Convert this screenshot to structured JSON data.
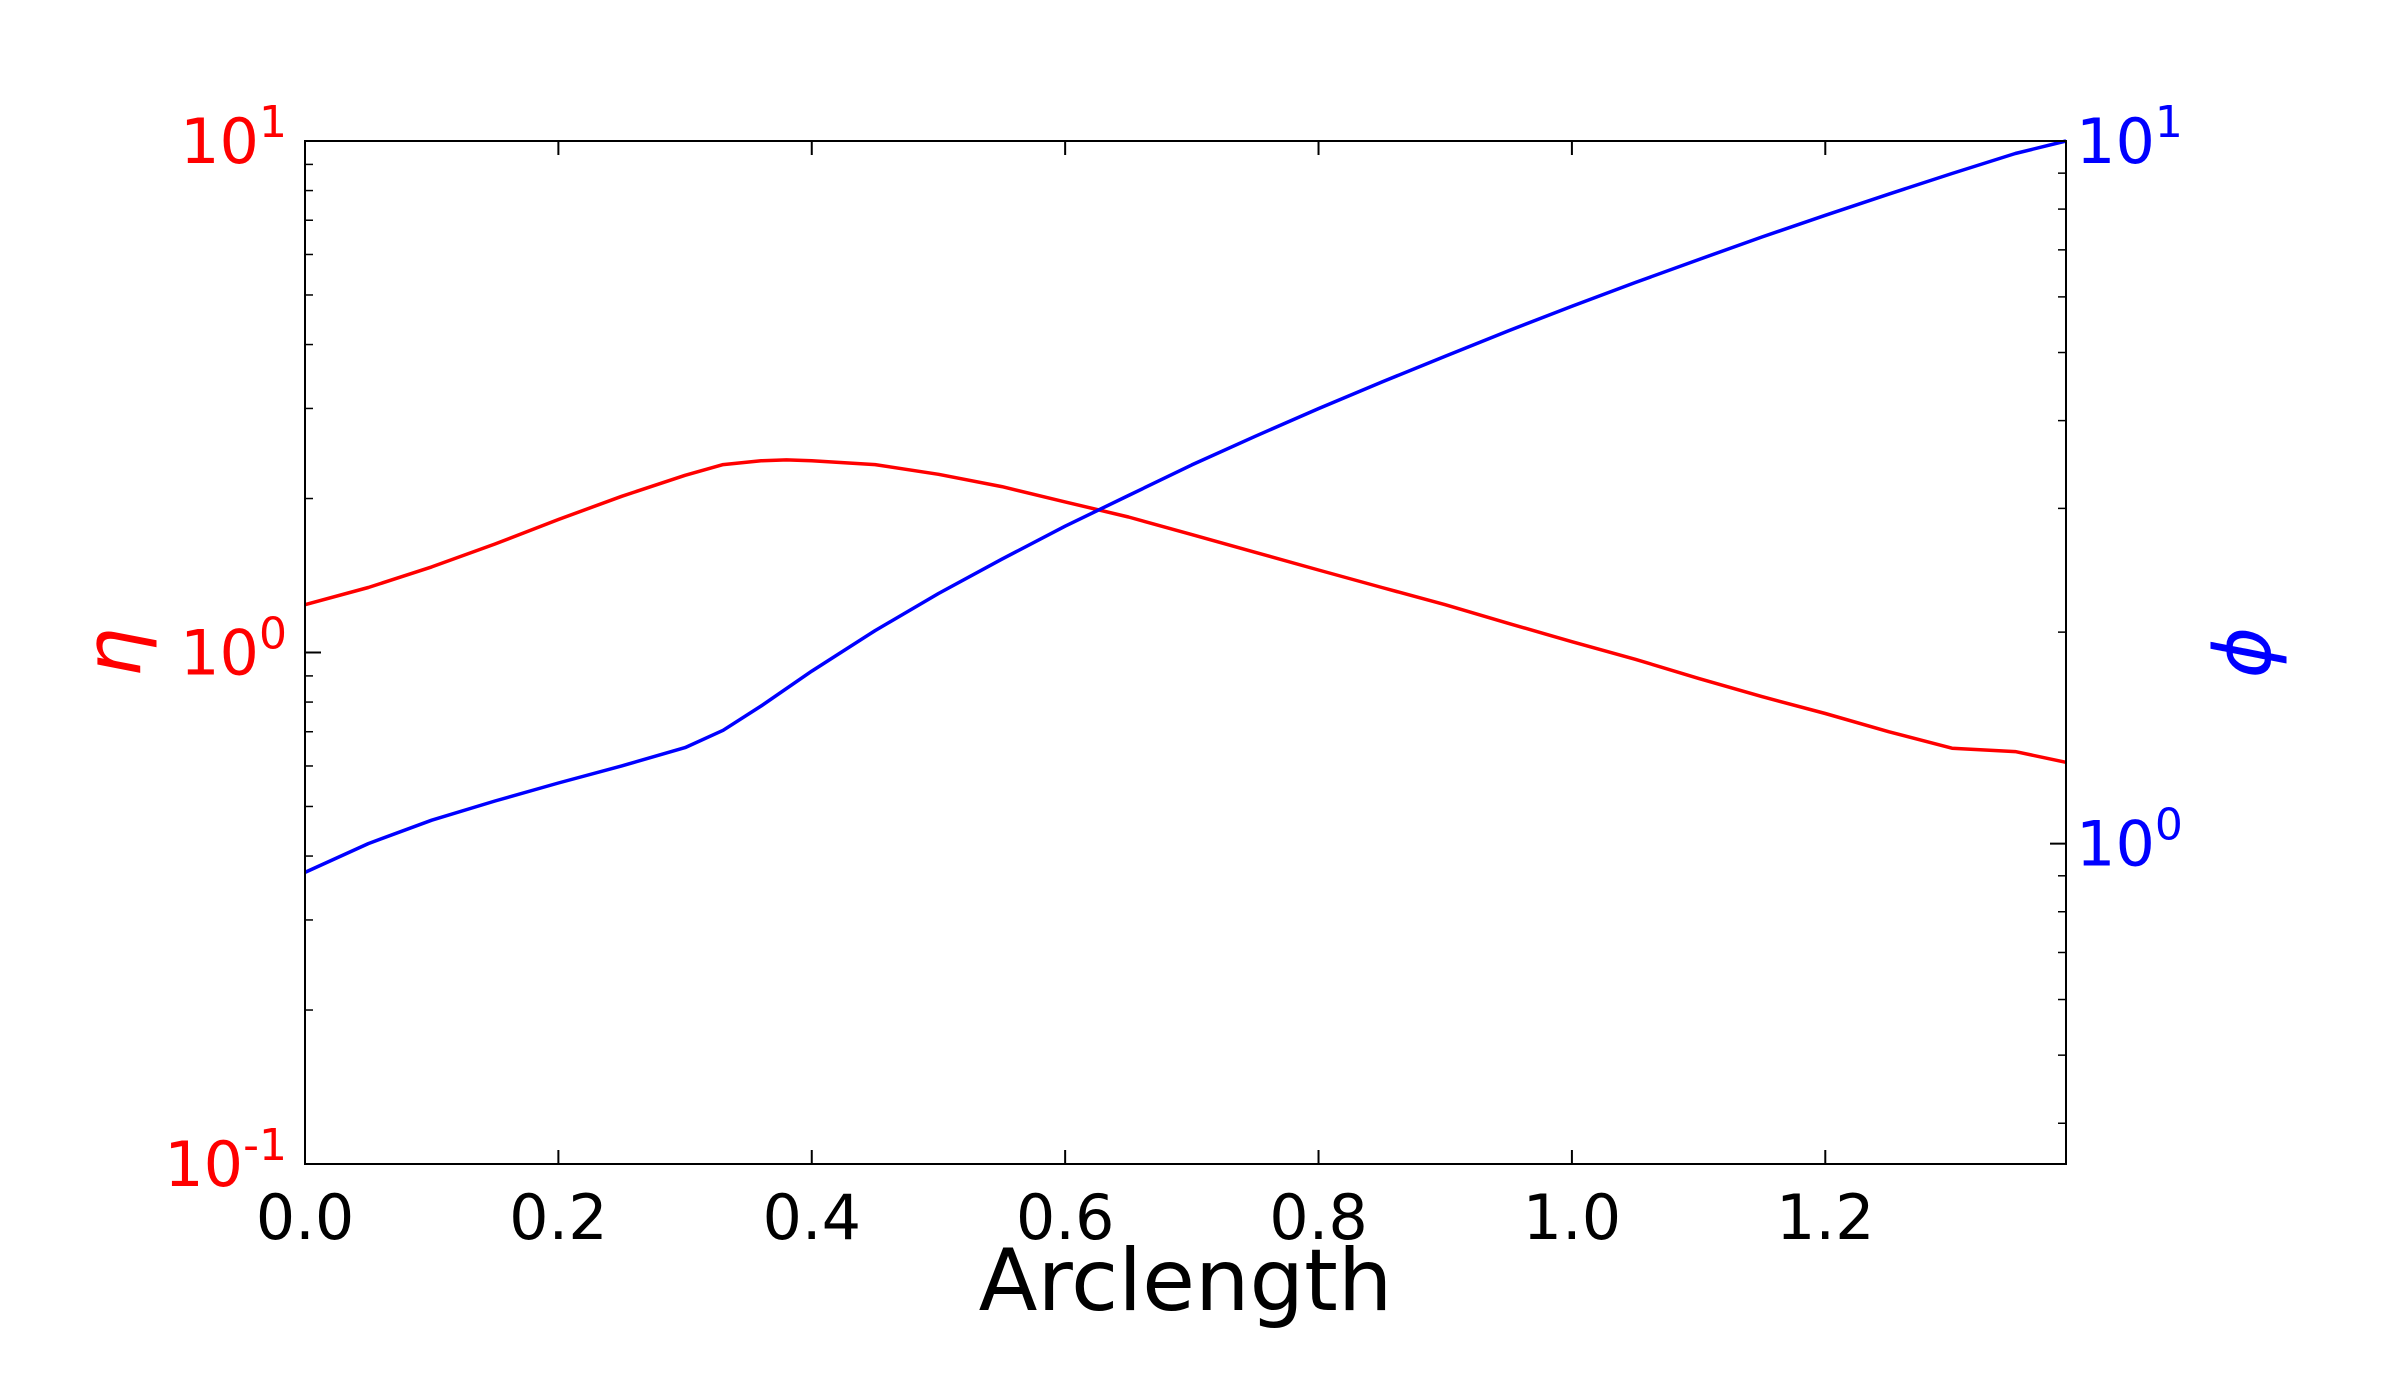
{
  "chart_data": {
    "type": "line",
    "xlabel": "Arclength",
    "xlim": [
      0.0,
      1.39
    ],
    "x_ticks": [
      "0.0",
      "0.2",
      "0.4",
      "0.6",
      "0.8",
      "1.0",
      "1.2"
    ],
    "x_tick_values": [
      0.0,
      0.2,
      0.4,
      0.6,
      0.8,
      1.0,
      1.2
    ],
    "y_left": {
      "label": "η",
      "scale": "log",
      "ylim": [
        0.1,
        10
      ],
      "color": "#ff0000",
      "ticks": [
        {
          "value": 10,
          "base": "10",
          "exp": "1"
        },
        {
          "value": 1,
          "base": "10",
          "exp": "0"
        },
        {
          "value": 0.1,
          "base": "10",
          "exp": "-1"
        }
      ]
    },
    "y_right": {
      "label": "ϕ",
      "scale": "log",
      "ylim": [
        0.35,
        10
      ],
      "color": "#0000ff",
      "ticks": [
        {
          "value": 10,
          "base": "10",
          "exp": "1"
        },
        {
          "value": 1,
          "base": "10",
          "exp": "0"
        }
      ]
    },
    "series": [
      {
        "axis": "left",
        "color": "#ff0000",
        "x": [
          0.0,
          0.05,
          0.1,
          0.15,
          0.2,
          0.25,
          0.3,
          0.33,
          0.36,
          0.38,
          0.4,
          0.45,
          0.5,
          0.55,
          0.6,
          0.65,
          0.7,
          0.75,
          0.8,
          0.85,
          0.9,
          0.95,
          1.0,
          1.05,
          1.1,
          1.15,
          1.2,
          1.25,
          1.3,
          1.35,
          1.39
        ],
        "y": [
          1.24,
          1.34,
          1.47,
          1.63,
          1.82,
          2.02,
          2.22,
          2.33,
          2.37,
          2.38,
          2.37,
          2.33,
          2.23,
          2.11,
          1.97,
          1.84,
          1.7,
          1.57,
          1.45,
          1.34,
          1.24,
          1.14,
          1.05,
          0.97,
          0.89,
          0.82,
          0.76,
          0.7,
          0.65,
          0.64,
          0.61
        ]
      },
      {
        "axis": "right",
        "color": "#0000ff",
        "x": [
          0.0,
          0.05,
          0.1,
          0.15,
          0.2,
          0.25,
          0.3,
          0.33,
          0.36,
          0.4,
          0.45,
          0.5,
          0.55,
          0.6,
          0.65,
          0.7,
          0.75,
          0.8,
          0.85,
          0.9,
          0.95,
          1.0,
          1.05,
          1.1,
          1.15,
          1.2,
          1.25,
          1.3,
          1.35,
          1.39
        ],
        "y": [
          0.91,
          1.0,
          1.08,
          1.15,
          1.22,
          1.29,
          1.37,
          1.45,
          1.57,
          1.76,
          2.01,
          2.27,
          2.54,
          2.83,
          3.13,
          3.46,
          3.8,
          4.16,
          4.54,
          4.94,
          5.37,
          5.82,
          6.29,
          6.78,
          7.3,
          7.84,
          8.4,
          8.99,
          9.6,
          10.0
        ]
      }
    ]
  }
}
